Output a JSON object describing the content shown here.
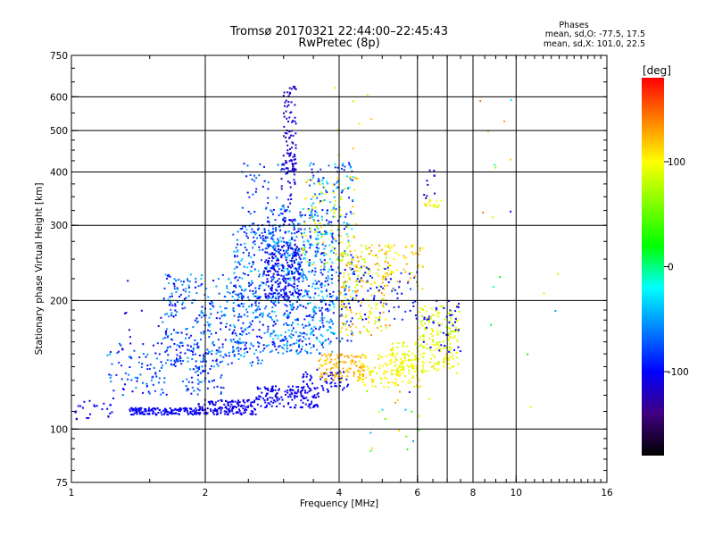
{
  "header": {
    "title_line1": "Tromsø 20170321 22:44:00–22:45:43",
    "title_line2": "RwPretec (8p)"
  },
  "stats": {
    "heading": "Phases",
    "line_o": "mean, sd,O: -77.5, 17.5",
    "line_x": "mean, sd,X: 101.0, 22.5"
  },
  "chart_data": {
    "type": "scatter",
    "xlabel": "Frequency [MHz]",
    "ylabel": "Stationary phase Virtual Height [km]",
    "x_scale": "log",
    "y_scale": "log",
    "xlim": [
      1,
      16
    ],
    "ylim": [
      75,
      750
    ],
    "x_ticks": [
      1,
      2,
      4,
      6,
      8,
      10,
      16
    ],
    "y_ticks": [
      75,
      100,
      200,
      300,
      400,
      500,
      600,
      750
    ],
    "x_grid": [
      2,
      4,
      6,
      7,
      8,
      10
    ],
    "y_grid": [
      100,
      200,
      300,
      400,
      500,
      600
    ],
    "grid": true,
    "colorbar": {
      "label": "[deg]",
      "range": [
        -180,
        180
      ],
      "ticks": [
        100,
        0,
        -100
      ],
      "tick_labels": [
        "100",
        "0",
        "-100"
      ],
      "colors": [
        "#ff0000",
        "#ff8000",
        "#ffff00",
        "#80ff00",
        "#00ff00",
        "#00ffff",
        "#0080ff",
        "#0000ff",
        "#400080",
        "#000000"
      ]
    },
    "clusters": [
      {
        "f": [
          1.35,
          1.9
        ],
        "h": [
          108,
          112
        ],
        "p": [
          -110,
          -95
        ],
        "n": 140
      },
      {
        "f": [
          1.9,
          2.6
        ],
        "h": [
          108,
          117
        ],
        "p": [
          -115,
          -100
        ],
        "n": 160
      },
      {
        "f": [
          2.6,
          3.6
        ],
        "h": [
          112,
          126
        ],
        "p": [
          -115,
          -95
        ],
        "n": 150
      },
      {
        "f": [
          3.3,
          4.2
        ],
        "h": [
          122,
          138
        ],
        "p": [
          -110,
          -95
        ],
        "n": 60
      },
      {
        "f": [
          1.02,
          1.25
        ],
        "h": [
          105,
          118
        ],
        "p": [
          -110,
          -95
        ],
        "n": 25
      },
      {
        "f": [
          1.2,
          2.2
        ],
        "h": [
          120,
          160
        ],
        "p": [
          -110,
          -50
        ],
        "n": 180
      },
      {
        "f": [
          1.6,
          2.7
        ],
        "h": [
          140,
          230
        ],
        "p": [
          -110,
          -40
        ],
        "n": 320
      },
      {
        "f": [
          2.3,
          3.4
        ],
        "h": [
          150,
          300
        ],
        "p": [
          -110,
          -30
        ],
        "n": 420
      },
      {
        "f": [
          2.8,
          3.9
        ],
        "h": [
          150,
          330
        ],
        "p": [
          -110,
          -20
        ],
        "n": 380
      },
      {
        "f": [
          2.7,
          3.3
        ],
        "h": [
          200,
          270
        ],
        "p": [
          -120,
          -100
        ],
        "n": 160
      },
      {
        "f": [
          3.0,
          3.2
        ],
        "h": [
          400,
          640
        ],
        "p": [
          -130,
          -100
        ],
        "n": 90
      },
      {
        "f": [
          2.95,
          3.2
        ],
        "h": [
          300,
          420
        ],
        "p": [
          -125,
          -95
        ],
        "n": 40
      },
      {
        "f": [
          3.4,
          4.3
        ],
        "h": [
          160,
          420
        ],
        "p": [
          -110,
          -20
        ],
        "n": 260
      },
      {
        "f": [
          3.3,
          4.4
        ],
        "h": [
          240,
          390
        ],
        "p": [
          60,
          130
        ],
        "n": 90
      },
      {
        "f": [
          3.6,
          4.6
        ],
        "h": [
          130,
          150
        ],
        "p": [
          110,
          140
        ],
        "n": 110
      },
      {
        "f": [
          4.0,
          5.2
        ],
        "h": [
          165,
          270
        ],
        "p": [
          70,
          140
        ],
        "n": 200
      },
      {
        "f": [
          4.4,
          6.2
        ],
        "h": [
          125,
          150
        ],
        "p": [
          85,
          115
        ],
        "n": 120
      },
      {
        "f": [
          5.2,
          7.4
        ],
        "h": [
          135,
          160
        ],
        "p": [
          80,
          110
        ],
        "n": 150
      },
      {
        "f": [
          6.0,
          7.5
        ],
        "h": [
          160,
          195
        ],
        "p": [
          70,
          110
        ],
        "n": 90
      },
      {
        "f": [
          4.2,
          6.0
        ],
        "h": [
          180,
          240
        ],
        "p": [
          -110,
          -80
        ],
        "n": 70
      },
      {
        "f": [
          5.0,
          6.2
        ],
        "h": [
          210,
          270
        ],
        "p": [
          90,
          130
        ],
        "n": 50
      },
      {
        "f": [
          6.2,
          6.9
        ],
        "h": [
          330,
          345
        ],
        "p": [
          80,
          110
        ],
        "n": 18
      },
      {
        "f": [
          6.2,
          6.6
        ],
        "h": [
          340,
          410
        ],
        "p": [
          -120,
          -100
        ],
        "n": 10
      },
      {
        "f": [
          6.2,
          7.5
        ],
        "h": [
          150,
          200
        ],
        "p": [
          -110,
          -90
        ],
        "n": 40
      },
      {
        "f": [
          2.4,
          3.0
        ],
        "h": [
          260,
          420
        ],
        "p": [
          -110,
          -60
        ],
        "n": 70
      },
      {
        "f": [
          1.3,
          1.8
        ],
        "h": [
          150,
          230
        ],
        "p": [
          -120,
          -100
        ],
        "n": 20
      },
      {
        "f": [
          8.3,
          10.0
        ],
        "h": [
          160,
          620
        ],
        "p": [
          -120,
          150
        ],
        "n": 12
      },
      {
        "f": [
          9.6,
          13.5
        ],
        "h": [
          105,
          560
        ],
        "p": [
          -100,
          120
        ],
        "n": 6
      },
      {
        "f": [
          4.5,
          6.5
        ],
        "h": [
          85,
          125
        ],
        "p": [
          -100,
          140
        ],
        "n": 20
      },
      {
        "f": [
          3.4,
          4.8
        ],
        "h": [
          420,
          630
        ],
        "p": [
          60,
          140
        ],
        "n": 8
      }
    ]
  }
}
